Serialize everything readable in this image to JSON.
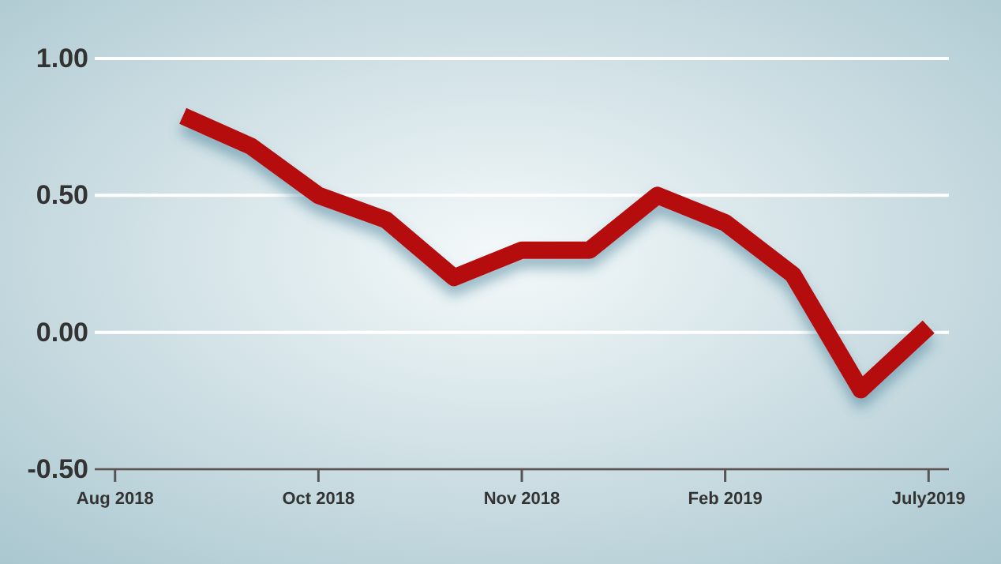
{
  "chart_data": {
    "type": "line",
    "categories": [
      "Aug 2018",
      null,
      null,
      "Oct 2018",
      null,
      null,
      "Nov 2018",
      null,
      null,
      "Feb 2019",
      null,
      null,
      "July2019"
    ],
    "series": [
      {
        "color": "#b50d0d",
        "values": [
          null,
          0.79,
          0.68,
          0.5,
          0.41,
          0.2,
          0.3,
          0.3,
          0.5,
          0.4,
          0.21,
          -0.21,
          0.02
        ]
      }
    ],
    "ylim": [
      -0.5,
      1
    ],
    "yticks": [
      {
        "value": -0.5,
        "label": "-0.50"
      },
      {
        "value": 0,
        "label": "0.00"
      },
      {
        "value": 0.5,
        "label": "0.50"
      },
      {
        "value": 1,
        "label": "1.00"
      }
    ],
    "grid": "y",
    "marker": "none",
    "line_style": "solid"
  }
}
